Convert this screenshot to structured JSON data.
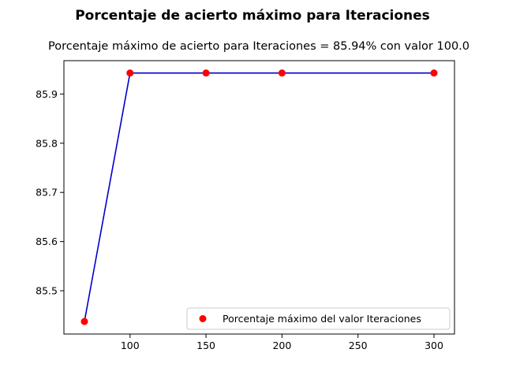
{
  "chart_data": {
    "type": "line",
    "title": "Porcentaje de acierto máximo para Iteraciones",
    "subtitle": "Porcentaje máximo de acierto para Iteraciones = 85.94% con valor 100.0",
    "xlabel": "",
    "ylabel": "",
    "x": [
      70,
      100,
      150,
      200,
      300
    ],
    "series": [
      {
        "values": [
          85.4375,
          85.9427,
          85.9427,
          85.9427,
          85.9427
        ],
        "color": "#0000cc",
        "kind": "line"
      },
      {
        "name": "Porcentaje máximo del valor Iteraciones",
        "values": [
          85.4375,
          85.9427,
          85.9427,
          85.9427,
          85.9427
        ],
        "color": "#ff0000",
        "kind": "scatter"
      }
    ],
    "xlim": [
      56.5,
      313.5
    ],
    "ylim": [
      85.412,
      85.9678
    ],
    "xticks": [
      100,
      150,
      200,
      250,
      300
    ],
    "yticks": [
      85.5,
      85.6,
      85.7,
      85.8,
      85.9
    ],
    "ytick_labels": [
      "85.5",
      "85.6",
      "85.7",
      "85.8",
      "85.9"
    ],
    "grid": false,
    "legend_position": "lower right"
  }
}
